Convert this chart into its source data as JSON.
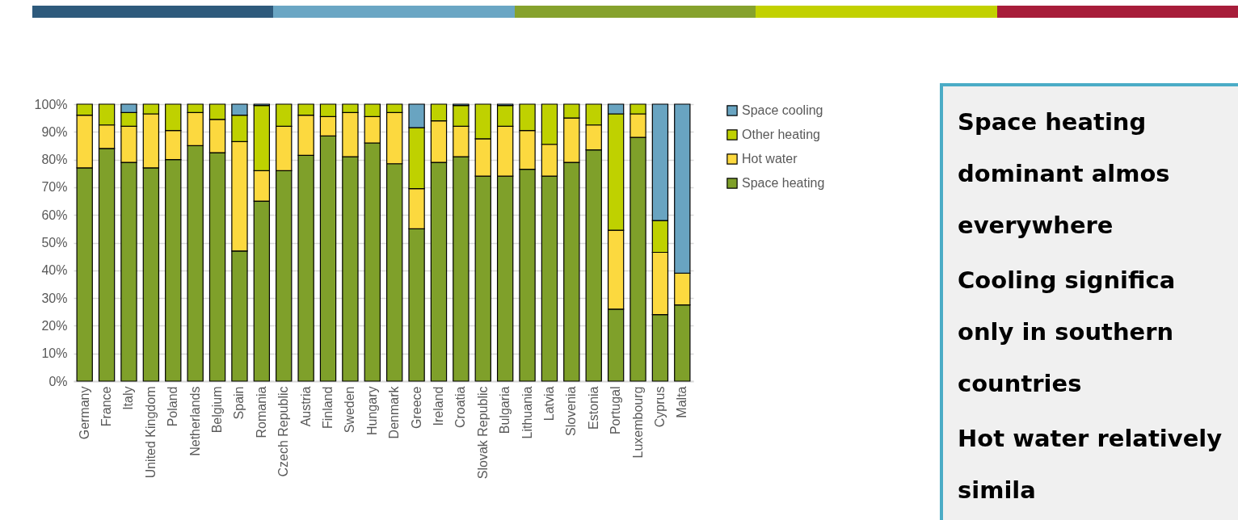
{
  "chart_data": {
    "type": "bar",
    "stacked": true,
    "categories": [
      "Germany",
      "France",
      "Italy",
      "United Kingdom",
      "Poland",
      "Netherlands",
      "Belgium",
      "Spain",
      "Romania",
      "Czech Republic",
      "Austria",
      "Finland",
      "Sweden",
      "Hungary",
      "Denmark",
      "Greece",
      "Ireland",
      "Croatia",
      "Slovak Republic",
      "Bulgaria",
      "Lithuania",
      "Latvia",
      "Slovenia",
      "Estonia",
      "Portugal",
      "Luxembourg",
      "Cyprus",
      "Malta"
    ],
    "series": [
      {
        "name": "Space heating",
        "color": "#7fa02a",
        "values": [
          77,
          84,
          79,
          77,
          80,
          85,
          82.5,
          47,
          65,
          76,
          81.5,
          88.5,
          81,
          86,
          78.5,
          55,
          79,
          81,
          74,
          74,
          76.5,
          74,
          79,
          83.5,
          26,
          88,
          24,
          27.5
        ]
      },
      {
        "name": "Hot water",
        "color": "#fcd93f",
        "values": [
          19,
          8.5,
          13,
          19.5,
          10.5,
          12,
          12,
          39.5,
          11,
          16,
          14.5,
          7,
          16,
          9.5,
          18.5,
          14.5,
          15,
          11,
          13.5,
          18,
          14,
          11.5,
          16,
          9,
          28.5,
          8.5,
          22.5,
          11.5
        ]
      },
      {
        "name": "Other heating",
        "color": "#bfd100",
        "values": [
          4,
          7.5,
          5,
          3.5,
          9.5,
          3,
          5.5,
          9.5,
          23.5,
          8,
          4,
          4.5,
          3,
          4.5,
          3,
          22,
          6,
          7.5,
          12.5,
          7.5,
          9.5,
          14.5,
          5,
          7.5,
          42,
          3.5,
          11.5,
          0
        ]
      },
      {
        "name": "Space cooling",
        "color": "#69a4c1",
        "values": [
          0,
          0,
          3,
          0,
          0,
          0,
          0,
          4,
          0.5,
          0,
          0,
          0,
          0,
          0,
          0,
          8.5,
          0,
          0.5,
          0,
          0.5,
          0,
          0,
          0,
          0,
          3.5,
          0,
          42,
          61
        ]
      }
    ],
    "ylim": [
      0,
      100
    ],
    "yticks": [
      {
        "value": 0,
        "label": "0%"
      },
      {
        "value": 10,
        "label": "10%"
      },
      {
        "value": 20,
        "label": "20%"
      },
      {
        "value": 30,
        "label": "30%"
      },
      {
        "value": 40,
        "label": "40%"
      },
      {
        "value": 50,
        "label": "50%"
      },
      {
        "value": 60,
        "label": "60%"
      },
      {
        "value": 70,
        "label": "70%"
      },
      {
        "value": 80,
        "label": "80%"
      },
      {
        "value": 90,
        "label": "90%"
      },
      {
        "value": 100,
        "label": "100%"
      }
    ],
    "grid": "y",
    "legend": "top right",
    "annotations": [
      "Space heating dominant almos everywhere",
      "Cooling significa only in southern countries",
      "Hot water relatively simila"
    ]
  }
}
